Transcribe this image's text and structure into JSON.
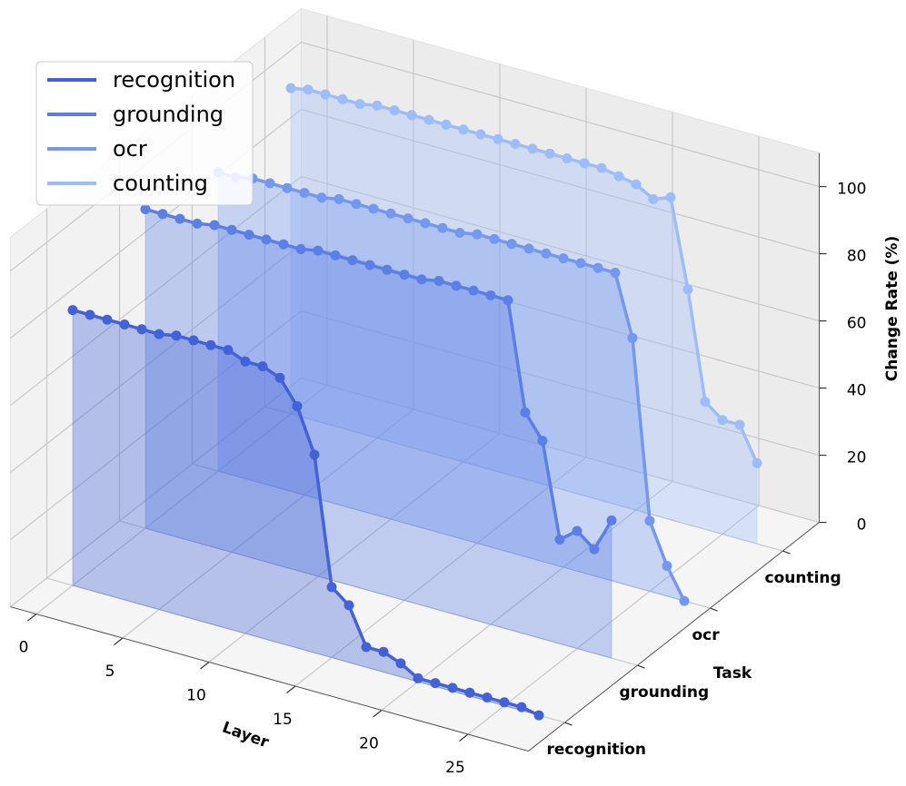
{
  "chart_data": {
    "type": "line3d",
    "xlabel": "Layer",
    "ylabel": "Task",
    "zlabel": "Change Rate (%)",
    "x": [
      0,
      1,
      2,
      3,
      4,
      5,
      6,
      7,
      8,
      9,
      10,
      11,
      12,
      13,
      14,
      15,
      16,
      17,
      18,
      19,
      20,
      21,
      22,
      23,
      24,
      25,
      26,
      27
    ],
    "xlim": [
      -1.5,
      28.5
    ],
    "xticks": [
      0,
      5,
      10,
      15,
      20,
      25
    ],
    "zlim": [
      0,
      110
    ],
    "zticks": [
      0,
      20,
      40,
      60,
      80,
      100
    ],
    "grid": true,
    "legend": "upper left",
    "series": [
      {
        "name": "recognition",
        "color": "#4361d8",
        "values": [
          82,
          82,
          82,
          82,
          82,
          82,
          83,
          83,
          83,
          83,
          81,
          81,
          79,
          72,
          59,
          21,
          17,
          6,
          6,
          4,
          1,
          1,
          1,
          1,
          1,
          1,
          1,
          0
        ]
      },
      {
        "name": "grounding",
        "color": "#5b7fe6",
        "values": [
          95,
          95,
          95,
          95,
          96,
          96,
          96,
          96,
          96,
          96,
          97,
          97,
          97,
          97,
          97,
          97,
          97,
          98,
          98,
          98,
          98,
          98,
          66,
          59,
          31,
          35,
          31,
          41
        ]
      },
      {
        "name": "ocr",
        "color": "#7497f0",
        "values": [
          89,
          89,
          90,
          90,
          90,
          90,
          90,
          91,
          91,
          91,
          91,
          91,
          91,
          91,
          91,
          92,
          92,
          92,
          92,
          92,
          92,
          92,
          92,
          92,
          74,
          21,
          9,
          0
        ]
      },
      {
        "name": "counting",
        "color": "#9dbcfc",
        "values": [
          97,
          98,
          98,
          98,
          98,
          99,
          99,
          99,
          99,
          99,
          99,
          99,
          99,
          99,
          99,
          99,
          99,
          99,
          99,
          98,
          97,
          94,
          96,
          70,
          38,
          34,
          34,
          24
        ]
      }
    ]
  }
}
